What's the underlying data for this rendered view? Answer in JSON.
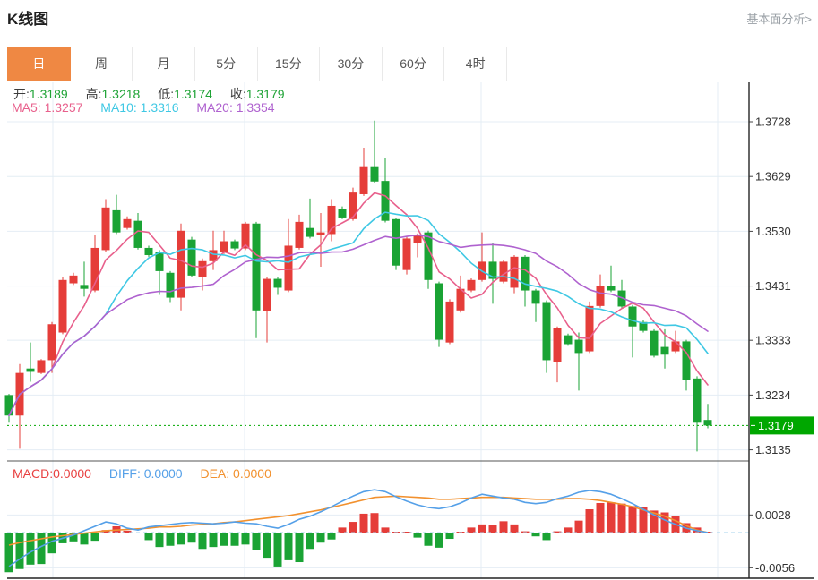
{
  "header": {
    "title": "K线图",
    "link": "基本面分析>"
  },
  "tabs": {
    "items": [
      "日",
      "周",
      "月",
      "5分",
      "15分",
      "30分",
      "60分",
      "4时"
    ],
    "active_index": 0
  },
  "legend": {
    "open_label": "开:",
    "open": "1.3189",
    "high_label": "高:",
    "high": "1.3218",
    "low_label": "低:",
    "low": "1.3174",
    "close_label": "收:",
    "close": "1.3179",
    "ma5_label": "MA5: ",
    "ma5": "1.3257",
    "ma10_label": "MA10: ",
    "ma10": "1.3316",
    "ma20_label": "MA20: ",
    "ma20": "1.3354"
  },
  "macd_legend": {
    "macd_label": "MACD:",
    "macd": "0.0000",
    "diff_label": "DIFF: ",
    "diff": "0.0000",
    "dea_label": "DEA: ",
    "dea": "0.0000"
  },
  "colors": {
    "up": "#e53d39",
    "down": "#1aa334",
    "ma5": "#e8608c",
    "ma10": "#3fc8e4",
    "ma20": "#af62cf",
    "diff": "#55a0e8",
    "dea": "#f2912e",
    "tag_bg": "#00a700",
    "tag_text": "#ffffff",
    "grid": "#e4edf4",
    "zero_dash": "#a5d3ee",
    "axis": "#444444",
    "tick_text": "#333333",
    "active_tab": "#ef8843",
    "price_line": "#00a700"
  },
  "chart_data": {
    "type": "candlestick+macd",
    "title": "K线图",
    "price_pane": {
      "y_tick_labels": [
        "1.3728",
        "1.3629",
        "1.3530",
        "1.3431",
        "1.3333",
        "1.3234",
        "1.3135"
      ],
      "y_ticks": [
        1.3728,
        1.3629,
        1.353,
        1.3431,
        1.3333,
        1.3234,
        1.3135
      ],
      "last_price": 1.3179,
      "last_price_label": "1.3179",
      "ma_windows": [
        5,
        10,
        20
      ],
      "candles_ohlc": [
        [
          1.3234,
          1.3236,
          1.3184,
          1.3197
        ],
        [
          1.3197,
          1.329,
          1.3137,
          1.3274
        ],
        [
          1.3282,
          1.3329,
          1.3258,
          1.3276
        ],
        [
          1.3274,
          1.3299,
          1.3272,
          1.3297
        ],
        [
          1.3297,
          1.3366,
          1.3274,
          1.3362
        ],
        [
          1.3347,
          1.3447,
          1.3344,
          1.3442
        ],
        [
          1.3436,
          1.3455,
          1.3433,
          1.345
        ],
        [
          1.3433,
          1.3475,
          1.3412,
          1.3426
        ],
        [
          1.3423,
          1.3523,
          1.342,
          1.35
        ],
        [
          1.3496,
          1.3588,
          1.3492,
          1.3573
        ],
        [
          1.3568,
          1.3596,
          1.3525,
          1.3528
        ],
        [
          1.3536,
          1.3557,
          1.3533,
          1.3552
        ],
        [
          1.3549,
          1.3563,
          1.3497,
          1.35
        ],
        [
          1.35,
          1.3504,
          1.3484,
          1.3487
        ],
        [
          1.3492,
          1.3496,
          1.3415,
          1.3458
        ],
        [
          1.3455,
          1.3458,
          1.3402,
          1.341
        ],
        [
          1.341,
          1.3544,
          1.3387,
          1.3531
        ],
        [
          1.3515,
          1.352,
          1.3447,
          1.345
        ],
        [
          1.3447,
          1.3481,
          1.3423,
          1.3476
        ],
        [
          1.3476,
          1.3531,
          1.346,
          1.3496
        ],
        [
          1.3492,
          1.3531,
          1.3489,
          1.3512
        ],
        [
          1.3512,
          1.3515,
          1.3496,
          1.3499
        ],
        [
          1.3499,
          1.3547,
          1.3496,
          1.3544
        ],
        [
          1.3544,
          1.3547,
          1.3337,
          1.3387
        ],
        [
          1.3386,
          1.3447,
          1.3329,
          1.3444
        ],
        [
          1.3444,
          1.3447,
          1.3415,
          1.3428
        ],
        [
          1.3423,
          1.3552,
          1.342,
          1.3504
        ],
        [
          1.35,
          1.356,
          1.3497,
          1.3547
        ],
        [
          1.3536,
          1.3589,
          1.3517,
          1.352
        ],
        [
          1.3523,
          1.3563,
          1.3466,
          1.3528
        ],
        [
          1.3525,
          1.3588,
          1.3512,
          1.3576
        ],
        [
          1.3571,
          1.3575,
          1.3552,
          1.3555
        ],
        [
          1.3552,
          1.3609,
          1.3549,
          1.36
        ],
        [
          1.3597,
          1.3681,
          1.3594,
          1.3646
        ],
        [
          1.3646,
          1.373,
          1.3617,
          1.362
        ],
        [
          1.3621,
          1.3662,
          1.3546,
          1.3549
        ],
        [
          1.3552,
          1.3555,
          1.346,
          1.3468
        ],
        [
          1.346,
          1.352,
          1.3452,
          1.3517
        ],
        [
          1.3508,
          1.3526,
          1.3483,
          1.3523
        ],
        [
          1.3528,
          1.3531,
          1.3426,
          1.3442
        ],
        [
          1.3436,
          1.3439,
          1.3321,
          1.3334
        ],
        [
          1.3329,
          1.3407,
          1.3326,
          1.3403
        ],
        [
          1.3387,
          1.345,
          1.3383,
          1.3426
        ],
        [
          1.3423,
          1.3445,
          1.342,
          1.3442
        ],
        [
          1.3442,
          1.3528,
          1.3439,
          1.3475
        ],
        [
          1.3475,
          1.3508,
          1.3399,
          1.3444
        ],
        [
          1.3439,
          1.3478,
          1.3436,
          1.3475
        ],
        [
          1.3428,
          1.3487,
          1.3418,
          1.3484
        ],
        [
          1.3484,
          1.3487,
          1.3394,
          1.3423
        ],
        [
          1.3423,
          1.3426,
          1.3366,
          1.3399
        ],
        [
          1.3402,
          1.3405,
          1.3274,
          1.3297
        ],
        [
          1.3294,
          1.3358,
          1.3257,
          1.3355
        ],
        [
          1.3342,
          1.3345,
          1.3323,
          1.3326
        ],
        [
          1.3334,
          1.3347,
          1.3242,
          1.331
        ],
        [
          1.3313,
          1.3403,
          1.331,
          1.3395
        ],
        [
          1.3395,
          1.3452,
          1.3392,
          1.3431
        ],
        [
          1.3431,
          1.3468,
          1.342,
          1.3423
        ],
        [
          1.3423,
          1.3442,
          1.3391,
          1.3394
        ],
        [
          1.3394,
          1.3397,
          1.3302,
          1.3358
        ],
        [
          1.3366,
          1.337,
          1.3347,
          1.335
        ],
        [
          1.335,
          1.3353,
          1.3302,
          1.3305
        ],
        [
          1.3321,
          1.3353,
          1.3282,
          1.3307
        ],
        [
          1.3313,
          1.335,
          1.331,
          1.3331
        ],
        [
          1.3331,
          1.3334,
          1.3242,
          1.3261
        ],
        [
          1.3264,
          1.3268,
          1.3132,
          1.3184
        ],
        [
          1.3189,
          1.3218,
          1.3174,
          1.3179
        ]
      ]
    },
    "macd_pane": {
      "y_tick_labels": [
        "0.0028",
        "-0.0056"
      ],
      "y_ticks": [
        0.0028,
        -0.0056
      ],
      "hist": [
        -0.0063,
        -0.0058,
        -0.0051,
        -0.005,
        -0.0033,
        -0.0017,
        -0.0014,
        -0.0019,
        -0.0013,
        0.0004,
        0.001,
        0.0003,
        -0.0001,
        -0.0012,
        -0.0023,
        -0.0021,
        -0.0019,
        -0.0016,
        -0.0026,
        -0.0023,
        -0.0021,
        -0.0021,
        -0.0019,
        -0.0028,
        -0.004,
        -0.0054,
        -0.0044,
        -0.0047,
        -0.0026,
        -0.0016,
        -0.0011,
        0.0008,
        0.0017,
        0.003,
        0.0031,
        0.0008,
        0.0001,
        0.0001,
        -0.0008,
        -0.0021,
        -0.0024,
        -0.001,
        0.0001,
        0.0008,
        0.0013,
        0.0012,
        0.0018,
        0.0013,
        0.0002,
        -0.0006,
        -0.0012,
        0.0002,
        0.0008,
        0.0019,
        0.0037,
        0.0047,
        0.0048,
        0.0046,
        0.0042,
        0.004,
        0.0035,
        0.0032,
        0.0027,
        0.0015,
        0.0008,
        0.0
      ],
      "diff": [
        -0.0054,
        -0.0042,
        -0.0031,
        -0.0022,
        -0.0014,
        -0.0009,
        -0.0004,
        0.0003,
        0.001,
        0.0017,
        0.0014,
        0.0007,
        0.0004,
        0.0009,
        0.0011,
        0.0013,
        0.0015,
        0.0016,
        0.0015,
        0.0014,
        0.0015,
        0.0017,
        0.0015,
        0.0014,
        0.001,
        0.0007,
        0.0013,
        0.0021,
        0.0026,
        0.0033,
        0.0041,
        0.005,
        0.0058,
        0.0065,
        0.0068,
        0.0065,
        0.0057,
        0.005,
        0.0044,
        0.004,
        0.0038,
        0.0041,
        0.0047,
        0.0055,
        0.0061,
        0.0058,
        0.0055,
        0.0053,
        0.0048,
        0.0046,
        0.0048,
        0.0054,
        0.0058,
        0.0064,
        0.0067,
        0.0065,
        0.0061,
        0.0054,
        0.0046,
        0.0037,
        0.0028,
        0.002,
        0.0013,
        0.0007,
        0.0003,
        0.0
      ],
      "dea": [
        -0.002,
        -0.0016,
        -0.0013,
        -0.001,
        -0.0007,
        -0.0005,
        -0.0003,
        -0.0001,
        0.0001,
        0.0003,
        0.0004,
        0.0005,
        0.0006,
        0.0007,
        0.0009,
        0.0009,
        0.001,
        0.0012,
        0.0013,
        0.0014,
        0.0016,
        0.0017,
        0.0019,
        0.0021,
        0.0023,
        0.0025,
        0.0027,
        0.003,
        0.0033,
        0.0036,
        0.004,
        0.0044,
        0.0048,
        0.0052,
        0.0056,
        0.0057,
        0.0058,
        0.0057,
        0.0056,
        0.0055,
        0.0053,
        0.0053,
        0.0054,
        0.0055,
        0.0056,
        0.0056,
        0.0056,
        0.0055,
        0.0054,
        0.0053,
        0.0053,
        0.0053,
        0.0054,
        0.0054,
        0.0053,
        0.0051,
        0.0048,
        0.0045,
        0.0041,
        0.0036,
        0.0031,
        0.0026,
        0.0019,
        0.0011,
        0.0004,
        0.0
      ]
    }
  }
}
